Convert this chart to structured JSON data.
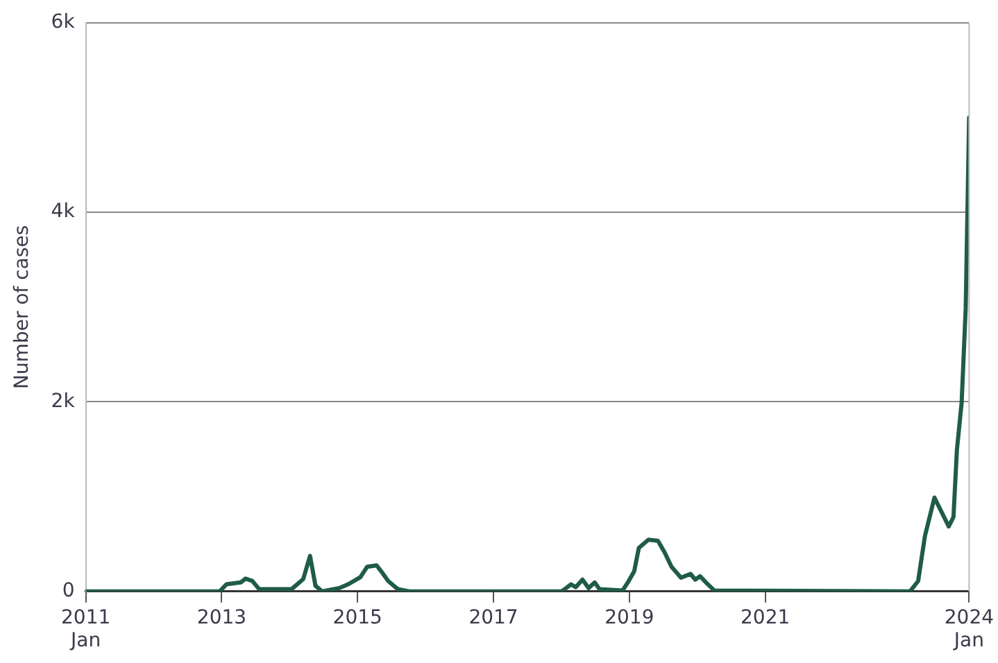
{
  "chart_data": {
    "type": "line",
    "ylabel": "Number of cases",
    "x": [
      2011,
      2012.9,
      2012.97,
      2013.07,
      2013.28,
      2013.35,
      2013.45,
      2013.55,
      2014.03,
      2014.2,
      2014.3,
      2014.38,
      2014.48,
      2014.73,
      2014.86,
      2015.04,
      2015.14,
      2015.28,
      2015.35,
      2015.45,
      2015.59,
      2015.76,
      2018.0,
      2018.04,
      2018.14,
      2018.21,
      2018.31,
      2018.4,
      2018.49,
      2018.56,
      2018.9,
      2018.99,
      2019.07,
      2019.14,
      2019.28,
      2019.42,
      2019.52,
      2019.62,
      2019.76,
      2019.9,
      2019.97,
      2020.04,
      2020.14,
      2020.25,
      2023.13,
      2023.25,
      2023.35,
      2023.49,
      2023.7,
      2023.77,
      2023.82,
      2023.89,
      2023.95,
      2024.0
    ],
    "series": [
      {
        "color": "#1f5c48",
        "values": [
          0,
          0,
          0,
          75,
          95,
          135,
          111,
          25,
          25,
          130,
          375,
          60,
          0,
          35,
          75,
          150,
          260,
          275,
          210,
          110,
          25,
          0,
          0,
          20,
          75,
          45,
          125,
          35,
          95,
          25,
          10,
          110,
          210,
          460,
          545,
          535,
          410,
          260,
          145,
          185,
          125,
          160,
          85,
          10,
          0,
          110,
          585,
          990,
          685,
          785,
          1490,
          1990,
          2990,
          5000
        ]
      }
    ],
    "xlim": [
      2011,
      2024
    ],
    "xticks": [
      {
        "value": 2011,
        "label": "2011\nJan"
      },
      2013,
      2015,
      2017,
      2019,
      2021,
      {
        "value": 2024,
        "label": "2024\nJan"
      }
    ],
    "ylim": [
      0,
      6000
    ],
    "yticks": [
      {
        "value": 0,
        "label": "0"
      },
      {
        "value": 2000,
        "label": "2k"
      },
      {
        "value": 4000,
        "label": "4k"
      },
      {
        "value": 6000,
        "label": "6k"
      }
    ],
    "grid": "y",
    "legend": false,
    "marker": "none",
    "line_style": "solid"
  }
}
